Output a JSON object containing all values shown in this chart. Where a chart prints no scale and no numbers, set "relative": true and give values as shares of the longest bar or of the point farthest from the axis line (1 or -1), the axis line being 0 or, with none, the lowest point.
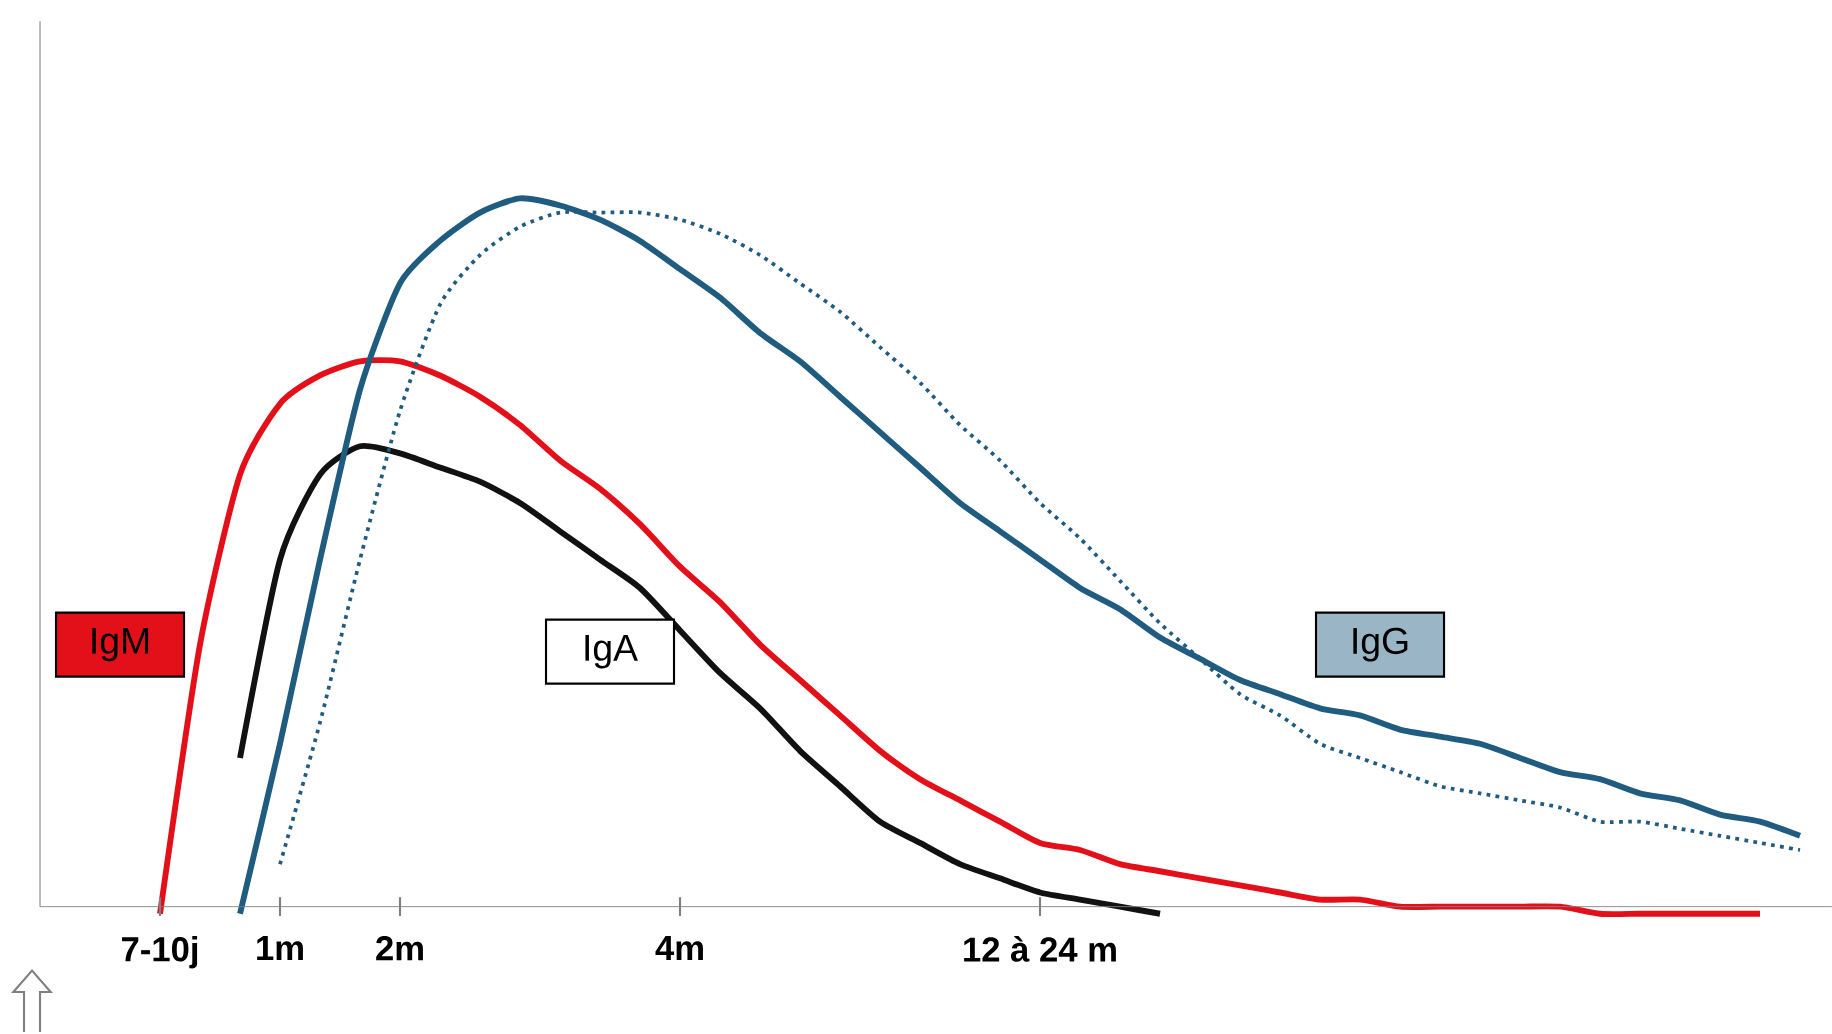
{
  "chart_data": {
    "type": "line",
    "relative": true,
    "marker": "none",
    "categories": [
      null,
      null,
      null,
      "7-10j",
      null,
      null,
      "1m",
      null,
      null,
      "2m",
      null,
      null,
      null,
      null,
      null,
      null,
      "4m",
      null,
      null,
      null,
      null,
      null,
      null,
      null,
      null,
      "12 à 24 m",
      null,
      null,
      null,
      null,
      null,
      null,
      null,
      null,
      null,
      null,
      null,
      null,
      null,
      null,
      null,
      null,
      null,
      null,
      null
    ],
    "series": [
      {
        "name": "IgM",
        "color": "#e3101a",
        "line_style": "solid",
        "values": [
          null,
          null,
          null,
          -0.01,
          0.37,
          0.61,
          0.71,
          0.75,
          0.77,
          0.77,
          0.75,
          0.72,
          0.68,
          0.63,
          0.59,
          0.54,
          0.48,
          0.43,
          0.37,
          0.32,
          0.27,
          0.22,
          0.18,
          0.15,
          0.12,
          0.09,
          0.08,
          0.06,
          0.05,
          0.04,
          0.03,
          0.02,
          0.01,
          0.01,
          0,
          0,
          0,
          0,
          0,
          -0.01,
          -0.01,
          -0.01,
          -0.01,
          -0.01,
          null
        ]
      },
      {
        "name": "IgA",
        "color": "#111111",
        "line_style": "solid",
        "values": [
          null,
          null,
          null,
          null,
          null,
          0.21,
          0.49,
          0.61,
          0.65,
          0.64,
          0.62,
          0.6,
          0.57,
          0.53,
          0.49,
          0.45,
          0.39,
          0.33,
          0.28,
          0.22,
          0.17,
          0.12,
          0.09,
          0.06,
          0.04,
          0.02,
          0.01,
          0,
          -0.01,
          null,
          null,
          null,
          null,
          null,
          null,
          null,
          null,
          null,
          null,
          null,
          null,
          null,
          null,
          null,
          null
        ]
      },
      {
        "name": "IgG",
        "color": "#1f5c80",
        "line_style": "solid",
        "values": [
          null,
          null,
          null,
          null,
          null,
          -0.01,
          0.23,
          0.49,
          0.73,
          0.88,
          0.94,
          0.98,
          1,
          0.99,
          0.97,
          0.94,
          0.9,
          0.86,
          0.81,
          0.77,
          0.72,
          0.67,
          0.62,
          0.57,
          0.53,
          0.49,
          0.45,
          0.42,
          0.38,
          0.35,
          0.32,
          0.3,
          0.28,
          0.27,
          0.25,
          0.24,
          0.23,
          0.21,
          0.19,
          0.18,
          0.16,
          0.15,
          0.13,
          0.12,
          0.1
        ]
      },
      {
        "color": "#1f5c80",
        "line_style": "dotted",
        "values": [
          null,
          null,
          null,
          null,
          null,
          null,
          0.06,
          0.26,
          0.49,
          0.7,
          0.85,
          0.92,
          0.96,
          0.98,
          0.98,
          0.98,
          0.97,
          0.95,
          0.92,
          0.88,
          0.84,
          0.79,
          0.74,
          0.68,
          0.63,
          0.57,
          0.52,
          0.46,
          0.4,
          0.35,
          0.3,
          0.27,
          0.23,
          0.21,
          0.19,
          0.17,
          0.16,
          0.15,
          0.14,
          0.12,
          0.12,
          0.11,
          0.1,
          0.09,
          0.08
        ]
      }
    ]
  }
}
